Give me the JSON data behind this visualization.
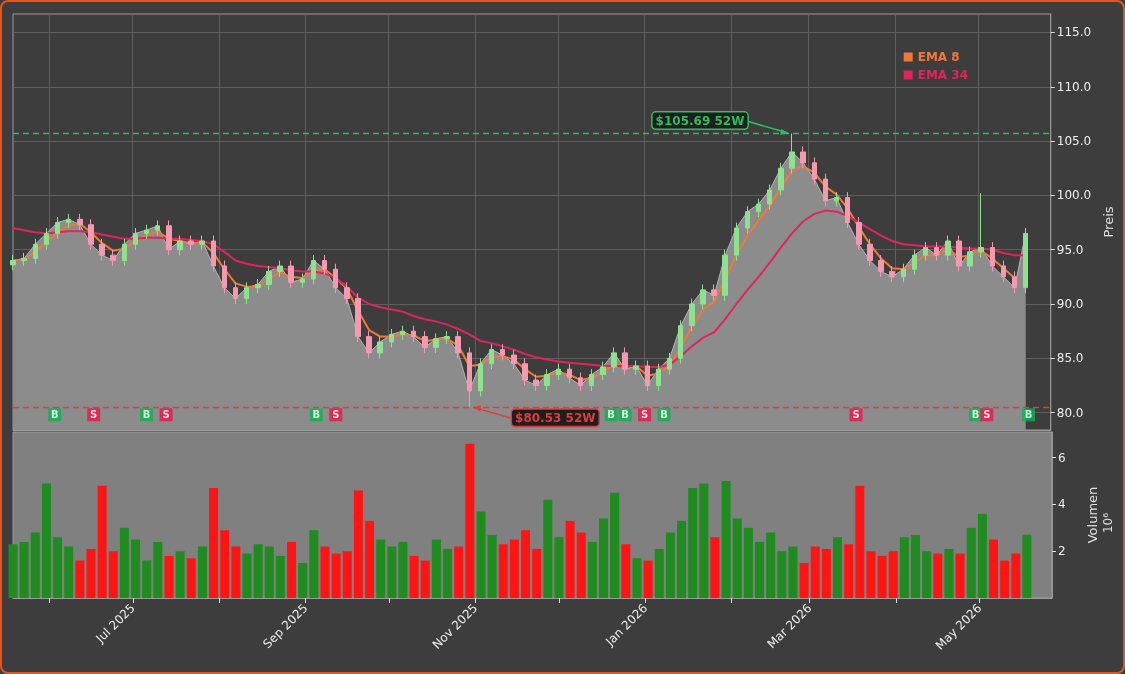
{
  "chart_data": [
    {
      "type": "candlestick",
      "ylabel": "Preis",
      "legend": "top right",
      "grid": true,
      "tick_labels": "y",
      "xlim": [
        "2025-05-19",
        "2026-05-27"
      ],
      "ylim": [
        78.4,
        116.7
      ],
      "xticks": [
        {
          "value": "2025-06-01",
          "label": null
        },
        {
          "value": "2025-07-01",
          "label": null
        },
        {
          "value": "2025-08-01",
          "label": null
        },
        {
          "value": "2025-09-01",
          "label": null
        },
        {
          "value": "2025-10-01",
          "label": null
        },
        {
          "value": "2025-11-01",
          "label": null
        },
        {
          "value": "2025-12-01",
          "label": null
        },
        {
          "value": "2026-01-01",
          "label": null
        },
        {
          "value": "2026-02-01",
          "label": null
        },
        {
          "value": "2026-03-01",
          "label": null
        },
        {
          "value": "2026-04-01",
          "label": null
        },
        {
          "value": "2026-05-01",
          "label": null
        }
      ],
      "yticks": [
        {
          "value": 80,
          "label": "80.0"
        },
        {
          "value": 85,
          "label": "85.0"
        },
        {
          "value": 90,
          "label": "90.0"
        },
        {
          "value": 95,
          "label": "95.0"
        },
        {
          "value": 100,
          "label": "100.0"
        },
        {
          "value": 105,
          "label": "105.0"
        },
        {
          "value": 110,
          "label": "110.0"
        },
        {
          "value": 115,
          "label": "115.0"
        }
      ],
      "x": [
        "2025-05-19",
        "2025-05-23",
        "2025-05-27",
        "2025-05-31",
        "2025-06-04",
        "2025-06-08",
        "2025-06-12",
        "2025-06-16",
        "2025-06-20",
        "2025-06-24",
        "2025-06-28",
        "2025-07-02",
        "2025-07-06",
        "2025-07-10",
        "2025-07-14",
        "2025-07-18",
        "2025-07-22",
        "2025-07-26",
        "2025-07-30",
        "2025-08-03",
        "2025-08-07",
        "2025-08-11",
        "2025-08-15",
        "2025-08-19",
        "2025-08-23",
        "2025-08-27",
        "2025-08-31",
        "2025-09-04",
        "2025-09-08",
        "2025-09-12",
        "2025-09-16",
        "2025-09-20",
        "2025-09-24",
        "2025-09-28",
        "2025-10-02",
        "2025-10-06",
        "2025-10-10",
        "2025-10-14",
        "2025-10-18",
        "2025-10-22",
        "2025-10-26",
        "2025-10-30",
        "2025-11-03",
        "2025-11-07",
        "2025-11-11",
        "2025-11-15",
        "2025-11-19",
        "2025-11-23",
        "2025-11-27",
        "2025-12-01",
        "2025-12-05",
        "2025-12-09",
        "2025-12-13",
        "2025-12-17",
        "2025-12-21",
        "2025-12-25",
        "2025-12-29",
        "2026-01-02",
        "2026-01-06",
        "2026-01-10",
        "2026-01-14",
        "2026-01-18",
        "2026-01-22",
        "2026-01-26",
        "2026-01-30",
        "2026-02-03",
        "2026-02-07",
        "2026-02-11",
        "2026-02-15",
        "2026-02-19",
        "2026-02-23",
        "2026-02-27",
        "2026-03-03",
        "2026-03-07",
        "2026-03-11",
        "2026-03-15",
        "2026-03-19",
        "2026-03-23",
        "2026-03-27",
        "2026-03-31",
        "2026-04-04",
        "2026-04-08",
        "2026-04-12",
        "2026-04-16",
        "2026-04-20",
        "2026-04-24",
        "2026-04-28",
        "2026-05-02",
        "2026-05-06",
        "2026-05-10",
        "2026-05-14",
        "2026-05-18"
      ],
      "ref_lines": [
        {
          "axis": "y",
          "value": 105.69,
          "color": "#2ebd5f",
          "line_style": "dashed"
        },
        {
          "axis": "y",
          "value": 80.53,
          "color": "#e03c3c",
          "line_style": "dashed"
        }
      ],
      "annotations": [
        {
          "text": "$105.69 52W",
          "x": "2026-02-23",
          "y": 105.69
        },
        {
          "text": "$80.53 52W",
          "x": "2025-10-30",
          "y": 80.53
        }
      ],
      "series": [
        {
          "type": "area",
          "color": "#8c8c8c",
          "values": [
            94,
            94.2,
            95.5,
            96.5,
            97.5,
            97.8,
            97.3,
            95.5,
            94.5,
            94,
            95.5,
            96.5,
            96.8,
            97.2,
            95,
            95.8,
            95.5,
            95.8,
            93.5,
            91.5,
            90.5,
            91.5,
            91.8,
            93,
            93.5,
            92,
            92.3,
            94,
            93.2,
            91.5,
            90.5,
            87,
            85.5,
            86.5,
            87.2,
            87.5,
            87,
            86,
            86.8,
            87,
            85.5,
            82,
            84.5,
            85.8,
            85.3,
            84.5,
            83,
            82.5,
            83.5,
            84,
            83.2,
            82.5,
            83.5,
            84.2,
            85.5,
            84,
            84.3,
            82.5,
            84,
            85,
            88,
            90,
            91.3,
            90.8,
            94.5,
            97,
            98.5,
            99.2,
            100.5,
            102.5,
            104,
            103,
            101.5,
            99.5,
            99.8,
            97.5,
            95.5,
            94,
            93,
            92.5,
            93.2,
            94.5,
            95.2,
            94.5,
            95.8,
            93.5,
            94.8,
            95.2,
            93.5,
            92.5,
            91.5,
            96.5
          ]
        },
        {
          "type": "candlestick",
          "ohlc": [
            [
              93.6,
              94.5,
              93.1,
              94
            ],
            [
              94,
              94.7,
              93.5,
              94.2
            ],
            [
              94.2,
              96,
              93.7,
              95.5
            ],
            [
              95.5,
              97,
              95,
              96.5
            ],
            [
              96.5,
              98,
              96,
              97.5
            ],
            [
              97.5,
              98.3,
              97,
              97.8
            ],
            [
              97.8,
              98.3,
              96.8,
              97.3
            ],
            [
              97.3,
              97.8,
              95,
              95.5
            ],
            [
              95.5,
              96,
              94,
              94.5
            ],
            [
              94.5,
              95,
              93.5,
              94
            ],
            [
              94,
              96,
              93.5,
              95.5
            ],
            [
              95.5,
              97,
              95,
              96.5
            ],
            [
              96.5,
              97.3,
              96,
              96.8
            ],
            [
              96.8,
              97.7,
              96.3,
              97.2
            ],
            [
              97.2,
              97.7,
              94.5,
              95
            ],
            [
              95,
              96.3,
              94.5,
              95.8
            ],
            [
              95.8,
              96.3,
              95,
              95.5
            ],
            [
              95.5,
              96.3,
              95,
              95.8
            ],
            [
              95.8,
              96.3,
              93,
              93.5
            ],
            [
              93.5,
              94,
              91,
              91.5
            ],
            [
              91.5,
              92,
              90,
              90.5
            ],
            [
              90.5,
              92,
              90,
              91.5
            ],
            [
              91.5,
              92.3,
              91,
              91.8
            ],
            [
              91.8,
              93.5,
              91.3,
              93
            ],
            [
              93,
              94,
              92.5,
              93.5
            ],
            [
              93.5,
              94,
              91.5,
              92
            ],
            [
              92,
              92.8,
              91.5,
              92.3
            ],
            [
              92.3,
              94.5,
              91.8,
              94
            ],
            [
              94,
              94.5,
              92.7,
              93.2
            ],
            [
              93.2,
              93.7,
              91,
              91.5
            ],
            [
              91.5,
              92,
              90,
              90.5
            ],
            [
              90.5,
              91,
              86.5,
              87
            ],
            [
              87,
              87.5,
              85,
              85.5
            ],
            [
              85.5,
              87,
              85,
              86.5
            ],
            [
              86.5,
              87.7,
              86,
              87.2
            ],
            [
              87.2,
              88,
              86.7,
              87.5
            ],
            [
              87.5,
              88,
              86.5,
              87
            ],
            [
              87,
              87.5,
              85.5,
              86
            ],
            [
              86,
              87.3,
              85.5,
              86.8
            ],
            [
              86.8,
              87.5,
              86.3,
              87
            ],
            [
              87,
              87.5,
              85,
              85.5
            ],
            [
              85.5,
              86,
              80.53,
              82
            ],
            [
              82,
              85,
              81.5,
              84.5
            ],
            [
              84.5,
              86.3,
              84,
              85.8
            ],
            [
              85.8,
              86.3,
              84.8,
              85.3
            ],
            [
              85.3,
              85.8,
              84,
              84.5
            ],
            [
              84.5,
              85,
              82.5,
              83
            ],
            [
              83,
              83.5,
              82,
              82.5
            ],
            [
              82.5,
              84,
              82,
              83.5
            ],
            [
              83.5,
              84.5,
              83,
              84
            ],
            [
              84,
              84.5,
              82.7,
              83.2
            ],
            [
              83.2,
              83.7,
              82,
              82.5
            ],
            [
              82.5,
              84,
              82,
              83.5
            ],
            [
              83.5,
              84.7,
              83,
              84.2
            ],
            [
              84.2,
              86,
              83.7,
              85.5
            ],
            [
              85.5,
              86,
              83.5,
              84
            ],
            [
              84,
              84.8,
              83.5,
              84.3
            ],
            [
              84.3,
              84.8,
              82,
              82.5
            ],
            [
              82.5,
              84.5,
              82,
              84
            ],
            [
              84,
              85.5,
              83.5,
              85
            ],
            [
              85,
              88.5,
              84.5,
              88
            ],
            [
              88,
              90.5,
              87.5,
              90
            ],
            [
              90,
              91.8,
              89.5,
              91.3
            ],
            [
              91.3,
              91.8,
              90.3,
              90.8
            ],
            [
              90.8,
              95,
              90.3,
              94.5
            ],
            [
              94.5,
              97.5,
              94,
              97
            ],
            [
              97,
              99,
              96.5,
              98.5
            ],
            [
              98.5,
              99.7,
              98,
              99.2
            ],
            [
              99.2,
              101,
              98.7,
              100.5
            ],
            [
              100.5,
              103,
              100,
              102.5
            ],
            [
              102.5,
              105.69,
              102,
              104
            ],
            [
              104,
              104.5,
              102.5,
              103
            ],
            [
              103,
              103.5,
              101,
              101.5
            ],
            [
              101.5,
              102,
              99,
              99.5
            ],
            [
              99.5,
              100.3,
              99,
              99.8
            ],
            [
              99.8,
              100.3,
              97,
              97.5
            ],
            [
              97.5,
              98,
              95,
              95.5
            ],
            [
              95.5,
              96,
              93.5,
              94
            ],
            [
              94,
              94.5,
              92.5,
              93
            ],
            [
              93,
              93.5,
              92,
              92.5
            ],
            [
              92.5,
              93.7,
              92,
              93.2
            ],
            [
              93.2,
              95,
              92.7,
              94.5
            ],
            [
              94.5,
              95.7,
              94,
              95.2
            ],
            [
              95.2,
              95.7,
              94,
              94.5
            ],
            [
              94.5,
              96.3,
              94,
              95.8
            ],
            [
              95.8,
              96.3,
              93,
              93.5
            ],
            [
              93.5,
              95.3,
              93,
              94.8
            ],
            [
              94.8,
              100.2,
              94.3,
              95.2
            ],
            [
              95.2,
              95.7,
              93,
              93.5
            ],
            [
              93.5,
              94,
              92,
              92.5
            ],
            [
              92.5,
              93,
              91,
              91.5
            ],
            [
              91.5,
              97,
              91,
              96.5
            ]
          ],
          "colors": [
            "#8fe08f",
            "#8fe08f",
            "#8fe08f",
            "#8fe08f",
            "#8fe08f",
            "#8fe08f",
            "#f49ab0",
            "#f49ab0",
            "#f49ab0",
            "#f49ab0",
            "#8fe08f",
            "#8fe08f",
            "#8fe08f",
            "#8fe08f",
            "#f49ab0",
            "#8fe08f",
            "#f49ab0",
            "#8fe08f",
            "#f49ab0",
            "#f49ab0",
            "#f49ab0",
            "#8fe08f",
            "#8fe08f",
            "#8fe08f",
            "#8fe08f",
            "#f49ab0",
            "#8fe08f",
            "#8fe08f",
            "#f49ab0",
            "#f49ab0",
            "#f49ab0",
            "#f49ab0",
            "#f49ab0",
            "#8fe08f",
            "#8fe08f",
            "#8fe08f",
            "#f49ab0",
            "#f49ab0",
            "#8fe08f",
            "#8fe08f",
            "#f49ab0",
            "#f49ab0",
            "#8fe08f",
            "#8fe08f",
            "#f49ab0",
            "#f49ab0",
            "#f49ab0",
            "#f49ab0",
            "#8fe08f",
            "#8fe08f",
            "#f49ab0",
            "#f49ab0",
            "#8fe08f",
            "#8fe08f",
            "#8fe08f",
            "#f49ab0",
            "#8fe08f",
            "#f49ab0",
            "#8fe08f",
            "#8fe08f",
            "#8fe08f",
            "#8fe08f",
            "#8fe08f",
            "#f49ab0",
            "#8fe08f",
            "#8fe08f",
            "#8fe08f",
            "#8fe08f",
            "#8fe08f",
            "#8fe08f",
            "#8fe08f",
            "#f49ab0",
            "#f49ab0",
            "#f49ab0",
            "#8fe08f",
            "#f49ab0",
            "#f49ab0",
            "#f49ab0",
            "#f49ab0",
            "#f49ab0",
            "#8fe08f",
            "#8fe08f",
            "#8fe08f",
            "#f49ab0",
            "#8fe08f",
            "#f49ab0",
            "#8fe08f",
            "#8fe08f",
            "#f49ab0",
            "#f49ab0",
            "#f49ab0",
            "#8fe08f"
          ]
        },
        {
          "type": "line",
          "name": "EMA 8",
          "color": "#f07838",
          "values": [
            94,
            94.1,
            94.8,
            95.7,
            96.6,
            97.2,
            97.4,
            96.6,
            95.6,
            94.9,
            95.1,
            95.8,
            96.3,
            96.7,
            96,
            95.8,
            95.6,
            95.7,
            94.7,
            93.2,
            91.9,
            91.6,
            91.6,
            92.3,
            92.9,
            92.5,
            92.4,
            93.1,
            93.2,
            92.4,
            91.4,
            89.4,
            87.6,
            87,
            87,
            87.2,
            87.1,
            86.6,
            86.7,
            86.8,
            86.2,
            84.3,
            84.4,
            85.1,
            85.2,
            84.9,
            84,
            83.3,
            83.4,
            83.7,
            83.5,
            83,
            83.2,
            83.7,
            84.5,
            84.3,
            84.3,
            83.4,
            83.6,
            84.3,
            86,
            87.9,
            89.5,
            90.2,
            null,
            94.5,
            96.3,
            97.7,
            99,
            100.7,
            102.3,
            102.7,
            102.1,
            100.8,
            100.1,
            98.8,
            97.1,
            95.5,
            94.2,
            93.3,
            93.2,
            93.8,
            94.5,
            94.5,
            95.1,
            94.3,
            94.5,
            94.9,
            94.2,
            93.3,
            92.4,
            null
          ]
        },
        {
          "type": "line",
          "name": "EMA 34",
          "color": "#e0245e",
          "values": [
            97,
            96.8,
            96.6,
            96.5,
            96.6,
            96.7,
            96.7,
            96.6,
            96.4,
            96.2,
            96,
            96,
            96.1,
            96.1,
            96,
            96,
            95.9,
            95.8,
            95.5,
            94.8,
            94,
            93.7,
            93.5,
            93.4,
            93.3,
            93.1,
            93,
            93,
            92.8,
            92.4,
            91.6,
            90.6,
            90,
            89.7,
            89.5,
            89.3,
            88.9,
            88.6,
            88.4,
            88.1,
            87.7,
            87.2,
            86.6,
            86.4,
            86.1,
            85.8,
            85.4,
            85.1,
            84.9,
            84.7,
            84.6,
            84.5,
            84.4,
            84.3,
            84.3,
            84.3,
            84.3,
            84.2,
            84.2,
            84.4,
            85.2,
            86.1,
            86.9,
            87.4,
            88.6,
            90,
            91.3,
            92.5,
            93.8,
            95.2,
            96.5,
            97.6,
            98.3,
            98.6,
            98.5,
            98.1,
            97.5,
            96.9,
            96.3,
            95.8,
            95.5,
            95.4,
            95.3,
            95.3,
            95.3,
            95.2,
            95.1,
            95.1,
            95,
            94.7,
            94.5,
            94.5
          ]
        },
        {
          "type": "scatter",
          "color": "#10b050",
          "marker": "square",
          "x": [
            "2025-06-03",
            "2025-07-06",
            "2025-09-05",
            "2025-12-20",
            "2025-12-25",
            "2026-01-08",
            "2026-04-30",
            "2026-05-19"
          ],
          "values": [
            79.8,
            79.8,
            79.8,
            79.8,
            79.8,
            79.8,
            79.8,
            79.8
          ],
          "value_labels": [
            "B",
            "B",
            "B",
            "B",
            "B",
            "B",
            "B",
            "B"
          ]
        },
        {
          "type": "scatter",
          "color": "#e8174a",
          "marker": "square",
          "x": [
            "2025-06-17",
            "2025-07-13",
            "2025-09-12",
            "2026-01-01",
            "2026-03-18",
            "2026-05-04"
          ],
          "values": [
            79.8,
            79.8,
            79.8,
            79.8,
            79.8,
            79.8
          ],
          "value_labels": [
            "S",
            "S",
            "S",
            "S",
            "S",
            "S"
          ]
        }
      ]
    },
    {
      "type": "bar",
      "ylabel": "Volumen",
      "annotations": [
        "10⁶"
      ],
      "xlim": [
        "2025-05-19",
        "2026-05-27"
      ],
      "ylim": [
        0,
        7.1
      ],
      "yticks": [
        2,
        4,
        6
      ],
      "xticks": [
        {
          "value": "2025-06-01",
          "label": null
        },
        {
          "value": "2025-07-01",
          "label": "Jul 2025"
        },
        {
          "value": "2025-08-01",
          "label": null
        },
        {
          "value": "2025-09-01",
          "label": "Sep 2025"
        },
        {
          "value": "2025-10-01",
          "label": null
        },
        {
          "value": "2025-11-01",
          "label": "Nov 2025"
        },
        {
          "value": "2025-12-01",
          "label": null
        },
        {
          "value": "2026-01-01",
          "label": "Jan 2026"
        },
        {
          "value": "2026-02-01",
          "label": null
        },
        {
          "value": "2026-03-01",
          "label": "Mar 2026"
        },
        {
          "value": "2026-04-01",
          "label": null
        },
        {
          "value": "2026-05-01",
          "label": "May 2026"
        }
      ],
      "x": [
        "2025-05-19",
        "2025-05-23",
        "2025-05-27",
        "2025-05-31",
        "2025-06-04",
        "2025-06-08",
        "2025-06-12",
        "2025-06-16",
        "2025-06-20",
        "2025-06-24",
        "2025-06-28",
        "2025-07-02",
        "2025-07-06",
        "2025-07-10",
        "2025-07-14",
        "2025-07-18",
        "2025-07-22",
        "2025-07-26",
        "2025-07-30",
        "2025-08-03",
        "2025-08-07",
        "2025-08-11",
        "2025-08-15",
        "2025-08-19",
        "2025-08-23",
        "2025-08-27",
        "2025-08-31",
        "2025-09-04",
        "2025-09-08",
        "2025-09-12",
        "2025-09-16",
        "2025-09-20",
        "2025-09-24",
        "2025-09-28",
        "2025-10-02",
        "2025-10-06",
        "2025-10-10",
        "2025-10-14",
        "2025-10-18",
        "2025-10-22",
        "2025-10-26",
        "2025-10-30",
        "2025-11-03",
        "2025-11-07",
        "2025-11-11",
        "2025-11-15",
        "2025-11-19",
        "2025-11-23",
        "2025-11-27",
        "2025-12-01",
        "2025-12-05",
        "2025-12-09",
        "2025-12-13",
        "2025-12-17",
        "2025-12-21",
        "2025-12-25",
        "2025-12-29",
        "2026-01-02",
        "2026-01-06",
        "2026-01-10",
        "2026-01-14",
        "2026-01-18",
        "2026-01-22",
        "2026-01-26",
        "2026-01-30",
        "2026-02-03",
        "2026-02-07",
        "2026-02-11",
        "2026-02-15",
        "2026-02-19",
        "2026-02-23",
        "2026-02-27",
        "2026-03-03",
        "2026-03-07",
        "2026-03-11",
        "2026-03-15",
        "2026-03-19",
        "2026-03-23",
        "2026-03-27",
        "2026-03-31",
        "2026-04-04",
        "2026-04-08",
        "2026-04-12",
        "2026-04-16",
        "2026-04-20",
        "2026-04-24",
        "2026-04-28",
        "2026-05-02",
        "2026-05-06",
        "2026-05-10",
        "2026-05-14",
        "2026-05-18"
      ],
      "values": [
        2.3,
        2.4,
        2.8,
        4.9,
        2.6,
        2.2,
        1.6,
        2.1,
        4.8,
        2.0,
        3.0,
        2.5,
        1.6,
        2.4,
        1.8,
        2.0,
        1.7,
        2.2,
        4.7,
        2.9,
        2.2,
        1.9,
        2.3,
        2.2,
        1.8,
        2.4,
        1.5,
        2.9,
        2.2,
        1.9,
        2.0,
        4.6,
        3.3,
        2.5,
        2.2,
        2.4,
        1.8,
        1.6,
        2.5,
        2.1,
        2.2,
        6.6,
        3.7,
        2.7,
        2.3,
        2.5,
        2.9,
        2.1,
        4.2,
        2.6,
        3.3,
        2.8,
        2.4,
        3.4,
        4.5,
        2.3,
        1.7,
        1.6,
        2.1,
        2.8,
        3.3,
        4.7,
        4.9,
        2.6,
        5.0,
        3.4,
        3.0,
        2.4,
        2.8,
        2.0,
        2.2,
        1.5,
        2.2,
        2.1,
        2.6,
        2.3,
        4.8,
        2.0,
        1.8,
        2.0,
        2.6,
        2.7,
        2.0,
        1.9,
        2.1,
        1.9,
        3.0,
        3.6,
        2.5,
        1.6,
        1.9,
        2.7
      ],
      "colors": [
        "#1e8c1e",
        "#1e8c1e",
        "#1e8c1e",
        "#1e8c1e",
        "#1e8c1e",
        "#1e8c1e",
        "#ff1414",
        "#ff1414",
        "#ff1414",
        "#ff1414",
        "#1e8c1e",
        "#1e8c1e",
        "#1e8c1e",
        "#1e8c1e",
        "#ff1414",
        "#1e8c1e",
        "#ff1414",
        "#1e8c1e",
        "#ff1414",
        "#ff1414",
        "#ff1414",
        "#1e8c1e",
        "#1e8c1e",
        "#1e8c1e",
        "#1e8c1e",
        "#ff1414",
        "#1e8c1e",
        "#1e8c1e",
        "#ff1414",
        "#ff1414",
        "#ff1414",
        "#ff1414",
        "#ff1414",
        "#1e8c1e",
        "#1e8c1e",
        "#1e8c1e",
        "#ff1414",
        "#ff1414",
        "#1e8c1e",
        "#1e8c1e",
        "#ff1414",
        "#ff1414",
        "#1e8c1e",
        "#1e8c1e",
        "#ff1414",
        "#ff1414",
        "#ff1414",
        "#ff1414",
        "#1e8c1e",
        "#1e8c1e",
        "#ff1414",
        "#ff1414",
        "#1e8c1e",
        "#1e8c1e",
        "#1e8c1e",
        "#ff1414",
        "#1e8c1e",
        "#ff1414",
        "#1e8c1e",
        "#1e8c1e",
        "#1e8c1e",
        "#1e8c1e",
        "#1e8c1e",
        "#ff1414",
        "#1e8c1e",
        "#1e8c1e",
        "#1e8c1e",
        "#1e8c1e",
        "#1e8c1e",
        "#1e8c1e",
        "#1e8c1e",
        "#ff1414",
        "#ff1414",
        "#ff1414",
        "#1e8c1e",
        "#ff1414",
        "#ff1414",
        "#ff1414",
        "#ff1414",
        "#ff1414",
        "#1e8c1e",
        "#1e8c1e",
        "#1e8c1e",
        "#ff1414",
        "#1e8c1e",
        "#ff1414",
        "#1e8c1e",
        "#1e8c1e",
        "#ff1414",
        "#ff1414",
        "#ff1414",
        "#1e8c1e"
      ]
    }
  ]
}
